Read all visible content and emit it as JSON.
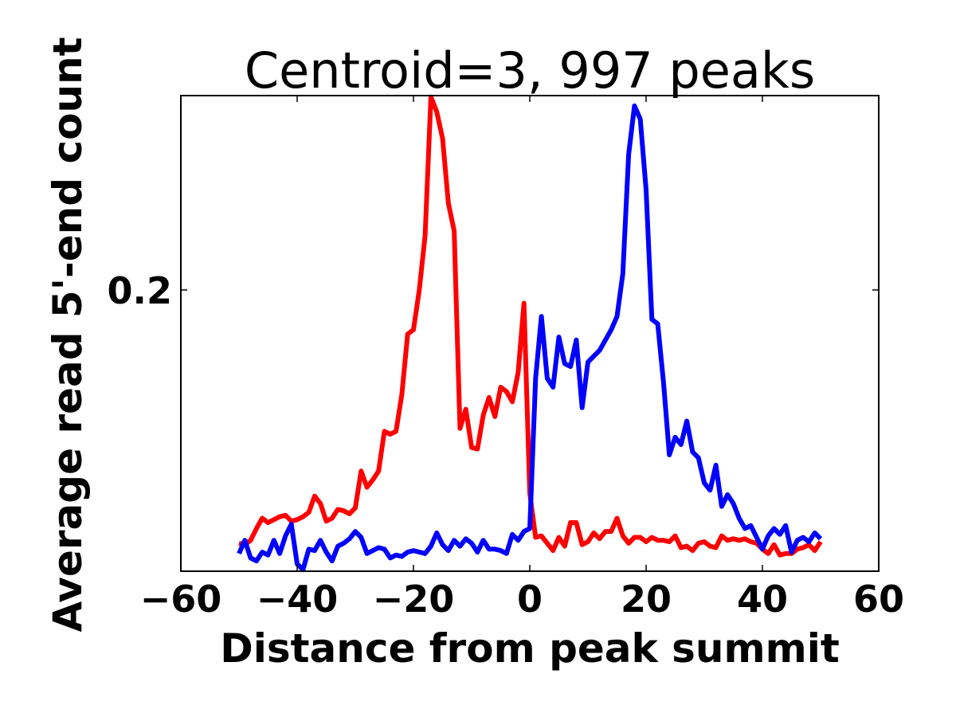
{
  "chart_data": {
    "type": "line",
    "title": "Centroid=3, 997 peaks",
    "xlabel": "Distance from peak summit",
    "ylabel": "Average read 5'-end count",
    "xlim": [
      -60,
      60
    ],
    "ylim": [
      0.009,
      0.332
    ],
    "xticks": [
      -60,
      -40,
      -20,
      0,
      20,
      40,
      60
    ],
    "xtick_labels": [
      "−60",
      "−40",
      "−20",
      "0",
      "20",
      "40",
      "60"
    ],
    "yticks": [
      0.2
    ],
    "ytick_labels": [
      "0.2"
    ],
    "grid": false,
    "x": [
      -50,
      -49,
      -48,
      -47,
      -46,
      -45,
      -44,
      -43,
      -42,
      -41,
      -40,
      -39,
      -38,
      -37,
      -36,
      -35,
      -34,
      -33,
      -32,
      -31,
      -30,
      -29,
      -28,
      -27,
      -26,
      -25,
      -24,
      -23,
      -22,
      -21,
      -20,
      -19,
      -18,
      -17,
      -16,
      -15,
      -14,
      -13,
      -12,
      -11,
      -10,
      -9,
      -8,
      -7,
      -6,
      -5,
      -4,
      -3,
      -2,
      -1,
      0,
      1,
      2,
      3,
      4,
      5,
      6,
      7,
      8,
      9,
      10,
      11,
      12,
      13,
      14,
      15,
      16,
      17,
      18,
      19,
      20,
      21,
      22,
      23,
      24,
      25,
      26,
      27,
      28,
      29,
      30,
      31,
      32,
      33,
      34,
      35,
      36,
      37,
      38,
      39,
      40,
      41,
      42,
      43,
      44,
      45,
      46,
      47,
      48,
      49,
      50
    ],
    "series": [
      {
        "color": "#ff0000",
        "values": [
          0.028,
          0.027,
          0.03,
          0.038,
          0.045,
          0.042,
          0.044,
          0.046,
          0.047,
          0.043,
          0.044,
          0.046,
          0.049,
          0.06,
          0.055,
          0.043,
          0.045,
          0.051,
          0.05,
          0.048,
          0.052,
          0.077,
          0.066,
          0.071,
          0.077,
          0.104,
          0.102,
          0.104,
          0.129,
          0.17,
          0.173,
          0.2,
          0.237,
          0.331,
          0.321,
          0.303,
          0.259,
          0.24,
          0.106,
          0.119,
          0.093,
          0.092,
          0.115,
          0.127,
          0.114,
          0.134,
          0.131,
          0.124,
          0.144,
          0.191,
          0.062,
          0.032,
          0.033,
          0.028,
          0.023,
          0.032,
          0.026,
          0.042,
          0.042,
          0.027,
          0.029,
          0.035,
          0.031,
          0.036,
          0.036,
          0.045,
          0.033,
          0.028,
          0.032,
          0.032,
          0.029,
          0.032,
          0.03,
          0.03,
          0.029,
          0.033,
          0.025,
          0.026,
          0.023,
          0.028,
          0.029,
          0.026,
          0.025,
          0.033,
          0.03,
          0.031,
          0.03,
          0.031,
          0.029,
          0.028,
          0.024,
          0.021,
          0.027,
          0.02,
          0.021,
          0.021,
          0.024,
          0.025,
          0.027,
          0.023,
          0.029
        ]
      },
      {
        "color": "#0000ff",
        "values": [
          0.021,
          0.03,
          0.018,
          0.016,
          0.022,
          0.02,
          0.03,
          0.021,
          0.033,
          0.041,
          0.014,
          0.01,
          0.024,
          0.023,
          0.03,
          0.022,
          0.016,
          0.026,
          0.028,
          0.031,
          0.036,
          0.032,
          0.021,
          0.023,
          0.025,
          0.024,
          0.018,
          0.02,
          0.019,
          0.022,
          0.023,
          0.022,
          0.021,
          0.026,
          0.035,
          0.027,
          0.023,
          0.03,
          0.026,
          0.031,
          0.028,
          0.022,
          0.03,
          0.024,
          0.024,
          0.023,
          0.021,
          0.034,
          0.03,
          0.036,
          0.038,
          0.14,
          0.182,
          0.14,
          0.134,
          0.168,
          0.15,
          0.148,
          0.166,
          0.12,
          0.151,
          0.155,
          0.159,
          0.166,
          0.173,
          0.182,
          0.211,
          0.292,
          0.325,
          0.316,
          0.268,
          0.18,
          0.177,
          0.137,
          0.088,
          0.1,
          0.095,
          0.111,
          0.09,
          0.086,
          0.069,
          0.064,
          0.081,
          0.053,
          0.061,
          0.055,
          0.045,
          0.038,
          0.04,
          0.032,
          0.024,
          0.033,
          0.038,
          0.034,
          0.04,
          0.022,
          0.03,
          0.032,
          0.029,
          0.035,
          0.031
        ]
      }
    ]
  }
}
